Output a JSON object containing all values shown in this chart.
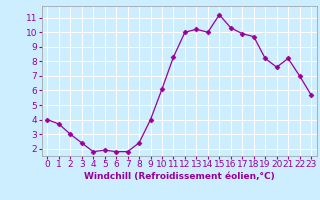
{
  "x": [
    0,
    1,
    2,
    3,
    4,
    5,
    6,
    7,
    8,
    9,
    10,
    11,
    12,
    13,
    14,
    15,
    16,
    17,
    18,
    19,
    20,
    21,
    22,
    23
  ],
  "y": [
    4.0,
    3.7,
    3.0,
    2.4,
    1.8,
    1.9,
    1.8,
    1.8,
    2.4,
    4.0,
    6.1,
    8.3,
    10.0,
    10.2,
    10.0,
    11.2,
    10.3,
    9.9,
    9.7,
    8.2,
    7.6,
    8.2,
    7.0,
    5.7
  ],
  "line_color": "#990099",
  "marker": "D",
  "marker_size": 2.5,
  "bg_color": "#cceeff",
  "grid_color": "#ffffff",
  "xlabel": "Windchill (Refroidissement éolien,°C)",
  "xlabel_fontsize": 6.5,
  "tick_fontsize": 6.5,
  "label_color": "#990099",
  "ylim": [
    1.5,
    11.8
  ],
  "yticks": [
    2,
    3,
    4,
    5,
    6,
    7,
    8,
    9,
    10,
    11
  ],
  "xlim": [
    -0.5,
    23.5
  ],
  "xticks": [
    0,
    1,
    2,
    3,
    4,
    5,
    6,
    7,
    8,
    9,
    10,
    11,
    12,
    13,
    14,
    15,
    16,
    17,
    18,
    19,
    20,
    21,
    22,
    23
  ]
}
